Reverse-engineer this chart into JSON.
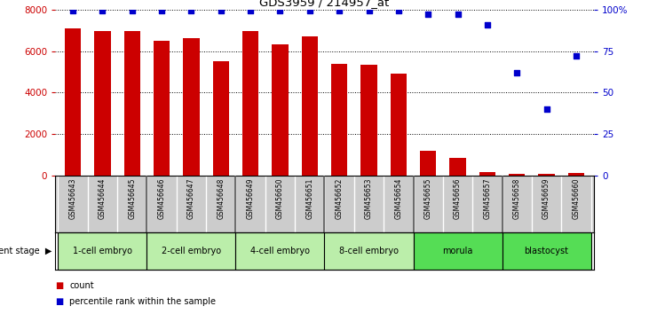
{
  "title": "GDS3959 / 214957_at",
  "samples": [
    "GSM456643",
    "GSM456644",
    "GSM456645",
    "GSM456646",
    "GSM456647",
    "GSM456648",
    "GSM456649",
    "GSM456650",
    "GSM456651",
    "GSM456652",
    "GSM456653",
    "GSM456654",
    "GSM456655",
    "GSM456656",
    "GSM456657",
    "GSM456658",
    "GSM456659",
    "GSM456660"
  ],
  "counts": [
    7100,
    6950,
    6950,
    6500,
    6600,
    5500,
    6950,
    6300,
    6700,
    5400,
    5350,
    4900,
    1200,
    850,
    180,
    80,
    100,
    120
  ],
  "percentiles": [
    99,
    99,
    99,
    99,
    99,
    99,
    99,
    99,
    99,
    99,
    99,
    99,
    97,
    97,
    91,
    62,
    40,
    72
  ],
  "ylim_left": [
    0,
    8000
  ],
  "ylim_right": [
    0,
    100
  ],
  "yticks_left": [
    0,
    2000,
    4000,
    6000,
    8000
  ],
  "yticks_right": [
    0,
    25,
    50,
    75,
    100
  ],
  "bar_color": "#cc0000",
  "dot_color": "#0000cc",
  "stage_groups": [
    {
      "label": "1-cell embryo",
      "start": 0,
      "end": 2,
      "color": "#bbeeaa"
    },
    {
      "label": "2-cell embryo",
      "start": 3,
      "end": 5,
      "color": "#bbeeaa"
    },
    {
      "label": "4-cell embryo",
      "start": 6,
      "end": 8,
      "color": "#bbeeaa"
    },
    {
      "label": "8-cell embryo",
      "start": 9,
      "end": 11,
      "color": "#bbeeaa"
    },
    {
      "label": "morula",
      "start": 12,
      "end": 14,
      "color": "#55dd55"
    },
    {
      "label": "blastocyst",
      "start": 15,
      "end": 17,
      "color": "#55dd55"
    }
  ],
  "xlabel_stage": "development stage",
  "legend_count": "count",
  "legend_percentile": "percentile rank within the sample",
  "left_axis_color": "#cc0000",
  "right_axis_color": "#0000cc",
  "background_color": "#ffffff",
  "tick_area_bg": "#cccccc",
  "group_boundaries": [
    2.5,
    5.5,
    8.5,
    11.5,
    14.5
  ]
}
